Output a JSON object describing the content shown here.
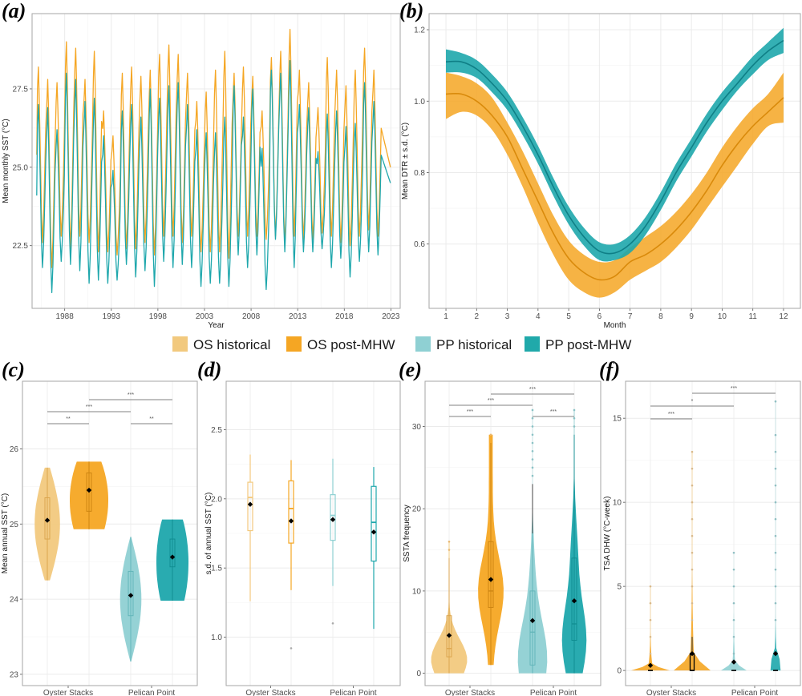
{
  "legend": [
    {
      "label": "OS historical",
      "color": "#F2C97E"
    },
    {
      "label": "OS post-MHW",
      "color": "#F5A623"
    },
    {
      "label": "PP historical",
      "color": "#8FD0D3"
    },
    {
      "label": "PP post-MHW",
      "color": "#20A9AA"
    }
  ],
  "colors": {
    "os": "#F5A623",
    "os_dark": "#D98A0B",
    "pp": "#1EA7AC",
    "pp_dark": "#0F8388",
    "os_hist": "#F2C97E",
    "pp_hist": "#8FD0D3",
    "grid": "#EBEBEB",
    "frame": "#A6A6A6"
  },
  "chart_data": [
    {
      "panel": "(a)",
      "type": "line",
      "title": "",
      "xlabel": "Year",
      "ylabel": "Mean monthly SST (°C)",
      "xticks": [
        "1988",
        "1993",
        "1998",
        "2003",
        "2008",
        "2013",
        "2018",
        "2023"
      ],
      "yticks": [
        "22.5",
        "25.0",
        "27.5"
      ],
      "xlim": [
        1984.5,
        2024.0
      ],
      "ylim": [
        20.5,
        29.9
      ],
      "grid": true,
      "series": [
        {
          "name": "Oyster Stacks",
          "color": "#F5A623",
          "annual_peaks": [
            28.2,
            27.8,
            27.7,
            29.0,
            28.8,
            27.8,
            28.7,
            26.8,
            26.0,
            28.0,
            28.2,
            27.9,
            28.1,
            28.6,
            28.9,
            28.6,
            28.0,
            27.1,
            27.4,
            28.1,
            28.7,
            28.0,
            28.2,
            27.9,
            26.8,
            28.5,
            28.7,
            29.4,
            28.1,
            27.7,
            26.9,
            28.5,
            28.1,
            27.6,
            28.1,
            28.8,
            28.1
          ],
          "annual_troughs": [
            22.6,
            21.8,
            22.8,
            22.4,
            22.8,
            22.6,
            22.3,
            22.3,
            22.2,
            22.4,
            22.4,
            22.6,
            22.2,
            22.8,
            22.8,
            22.6,
            22.8,
            22.3,
            22.3,
            22.3,
            22.1,
            22.8,
            22.8,
            22.8,
            22.7,
            22.8,
            22.5,
            22.8,
            22.7,
            22.7,
            22.9,
            22.8,
            22.6,
            22.5,
            22.8,
            23.0,
            22.8
          ],
          "end_value": 25.0
        },
        {
          "name": "Pelican Point",
          "color": "#1EA7AC",
          "annual_peaks": [
            27.0,
            26.9,
            26.2,
            28.0,
            27.8,
            27.1,
            27.2,
            26.0,
            24.9,
            26.8,
            27.0,
            26.6,
            27.5,
            27.2,
            27.6,
            27.7,
            27.0,
            26.2,
            26.1,
            26.1,
            26.6,
            27.6,
            26.6,
            27.5,
            25.6,
            28.1,
            28.0,
            28.4,
            27.0,
            26.9,
            25.5,
            26.7,
            26.8,
            26.3,
            26.4,
            27.7,
            27.1
          ],
          "annual_troughs": [
            21.8,
            21.0,
            22.0,
            21.9,
            21.7,
            21.3,
            21.4,
            21.3,
            21.4,
            21.9,
            21.5,
            21.7,
            21.2,
            22.0,
            21.8,
            21.9,
            21.8,
            21.2,
            21.3,
            21.3,
            21.2,
            22.2,
            21.8,
            22.2,
            21.1,
            22.7,
            22.3,
            21.8,
            22.3,
            22.3,
            22.4,
            21.8,
            22.1,
            21.5,
            22.0,
            22.3,
            22.2
          ],
          "end_value": 24.5
        }
      ]
    },
    {
      "panel": "(b)",
      "type": "line",
      "title": "",
      "xlabel": "Month",
      "ylabel": "Mean DTR ± s.d. (°C)",
      "xticks": [
        "1",
        "2",
        "3",
        "4",
        "5",
        "6",
        "7",
        "8",
        "9",
        "10",
        "11",
        "12"
      ],
      "yticks": [
        "0.6",
        "0.8",
        "1.0",
        "1.2"
      ],
      "xlim": [
        0.45,
        12.55
      ],
      "ylim": [
        0.42,
        1.245
      ],
      "grid": true,
      "x": [
        1,
        1.5,
        2,
        2.5,
        3,
        3.5,
        4,
        4.5,
        5,
        5.5,
        6,
        6.5,
        7,
        7.5,
        8,
        8.5,
        9,
        9.5,
        10,
        10.5,
        11,
        11.5,
        12
      ],
      "series": [
        {
          "name": "Oyster Stacks",
          "color": "#F5A623",
          "mean": [
            1.02,
            1.02,
            1.0,
            0.96,
            0.9,
            0.81,
            0.72,
            0.63,
            0.56,
            0.52,
            0.5,
            0.51,
            0.55,
            0.57,
            0.6,
            0.64,
            0.69,
            0.75,
            0.82,
            0.88,
            0.93,
            0.97,
            1.01
          ],
          "lower": [
            0.95,
            0.97,
            0.96,
            0.92,
            0.85,
            0.76,
            0.66,
            0.57,
            0.5,
            0.465,
            0.45,
            0.465,
            0.5,
            0.525,
            0.55,
            0.59,
            0.64,
            0.7,
            0.76,
            0.82,
            0.88,
            0.93,
            0.94
          ],
          "upper": [
            1.08,
            1.07,
            1.05,
            1.01,
            0.94,
            0.86,
            0.77,
            0.68,
            0.61,
            0.57,
            0.55,
            0.555,
            0.59,
            0.62,
            0.65,
            0.69,
            0.74,
            0.8,
            0.87,
            0.93,
            0.98,
            1.02,
            1.08
          ]
        },
        {
          "name": "Pelican Point",
          "color": "#1EA7AC",
          "mean": [
            1.11,
            1.11,
            1.09,
            1.05,
            1.0,
            0.93,
            0.85,
            0.76,
            0.68,
            0.62,
            0.58,
            0.575,
            0.6,
            0.65,
            0.72,
            0.8,
            0.87,
            0.94,
            1.0,
            1.05,
            1.1,
            1.14,
            1.17
          ],
          "lower": [
            1.08,
            1.08,
            1.065,
            1.025,
            0.975,
            0.905,
            0.825,
            0.735,
            0.655,
            0.595,
            0.555,
            0.555,
            0.575,
            0.625,
            0.695,
            0.775,
            0.845,
            0.915,
            0.975,
            1.03,
            1.075,
            1.115,
            1.135
          ],
          "upper": [
            1.145,
            1.135,
            1.115,
            1.075,
            1.025,
            0.955,
            0.875,
            0.785,
            0.705,
            0.645,
            0.605,
            0.6,
            0.625,
            0.675,
            0.745,
            0.825,
            0.895,
            0.965,
            1.025,
            1.075,
            1.125,
            1.165,
            1.205
          ]
        }
      ]
    },
    {
      "panel": "(c)",
      "type": "violin",
      "ylabel": "Mean annual SST (°C)",
      "categories": [
        "Oyster Stacks",
        "Pelican Point"
      ],
      "yticks": [
        "23",
        "24",
        "25",
        "26"
      ],
      "ylim": [
        22.85,
        26.9
      ],
      "groups": [
        {
          "name": "OS historical",
          "min": 24.25,
          "q1": 24.8,
          "median": 25.05,
          "q3": 25.35,
          "max": 25.75,
          "mean": 25.05
        },
        {
          "name": "OS post-MHW",
          "min": 24.93,
          "q1": 25.17,
          "median": 25.45,
          "q3": 25.68,
          "max": 25.83,
          "mean": 25.45
        },
        {
          "name": "PP historical",
          "min": 23.17,
          "q1": 23.78,
          "median": 24.05,
          "q3": 24.37,
          "max": 24.83,
          "mean": 24.05
        },
        {
          "name": "PP post-MHW",
          "min": 23.98,
          "q1": 24.43,
          "median": 24.57,
          "q3": 24.8,
          "max": 25.06,
          "mean": 24.56
        }
      ],
      "significance": [
        {
          "from": 0,
          "to": 1,
          "label": "**",
          "level": 1
        },
        {
          "from": 2,
          "to": 3,
          "label": "**",
          "level": 1
        },
        {
          "from": 0,
          "to": 2,
          "label": "***",
          "level": 2
        },
        {
          "from": 1,
          "to": 3,
          "label": "***",
          "level": 3
        }
      ]
    },
    {
      "panel": "(d)",
      "type": "boxplot",
      "ylabel": "s.d. of annual SST (°C)",
      "categories": [
        "Oyster Stacks",
        "Pelican Point"
      ],
      "yticks": [
        "1.0",
        "1.5",
        "2.0",
        "2.5"
      ],
      "ylim": [
        0.65,
        2.85
      ],
      "groups": [
        {
          "name": "OS historical",
          "min": 1.26,
          "q1": 1.77,
          "median": 2.01,
          "q3": 2.12,
          "max": 2.32,
          "mean": 1.96,
          "outliers": []
        },
        {
          "name": "OS post-MHW",
          "min": 1.34,
          "q1": 1.68,
          "median": 1.93,
          "q3": 2.13,
          "max": 2.28,
          "mean": 1.84,
          "outliers": [
            0.92
          ]
        },
        {
          "name": "PP historical",
          "min": 1.37,
          "q1": 1.7,
          "median": 1.88,
          "q3": 2.03,
          "max": 2.29,
          "mean": 1.85,
          "outliers": [
            1.1
          ]
        },
        {
          "name": "PP post-MHW",
          "min": 1.06,
          "q1": 1.55,
          "median": 1.83,
          "q3": 2.09,
          "max": 2.23,
          "mean": 1.76,
          "outliers": []
        }
      ]
    },
    {
      "panel": "(e)",
      "type": "violin",
      "ylabel": "SSTA frequency",
      "categories": [
        "Oyster Stacks",
        "Pelican Point"
      ],
      "yticks": [
        "0",
        "10",
        "20",
        "30"
      ],
      "ylim": [
        -1.5,
        35.5
      ],
      "groups": [
        {
          "name": "OS historical",
          "min": 0,
          "q1": 2,
          "median": 3,
          "q3": 7,
          "max": 14,
          "mean": 4.6,
          "outliers": [
            15,
            16
          ]
        },
        {
          "name": "OS post-MHW",
          "min": 1,
          "q1": 8,
          "median": 10,
          "q3": 16,
          "max": 28,
          "mean": 11.4,
          "outliers": [
            29
          ]
        },
        {
          "name": "PP historical",
          "min": 0,
          "q1": 1,
          "median": 5,
          "q3": 10,
          "max": 23,
          "mean": 6.4,
          "outliers": [
            24,
            25,
            26,
            27,
            28,
            29,
            30,
            31,
            32
          ]
        },
        {
          "name": "PP post-MHW",
          "min": 0,
          "q1": 4,
          "median": 6,
          "q3": 14,
          "max": 29,
          "mean": 8.8,
          "outliers": [
            30,
            31,
            32
          ]
        }
      ],
      "significance": [
        {
          "from": 0,
          "to": 1,
          "label": "***",
          "level": 1
        },
        {
          "from": 2,
          "to": 3,
          "label": "***",
          "level": 1
        },
        {
          "from": 0,
          "to": 2,
          "label": "***",
          "level": 2
        },
        {
          "from": 1,
          "to": 3,
          "label": "***",
          "level": 3
        }
      ]
    },
    {
      "panel": "(f)",
      "type": "violin",
      "ylabel": "TSA DHW  (°C-week)",
      "categories": [
        "Oyster Stacks",
        "Pelican Point"
      ],
      "yticks": [
        "0",
        "5",
        "10",
        "15"
      ],
      "ylim": [
        -0.9,
        17.2
      ],
      "groups": [
        {
          "name": "OS historical",
          "min": 0,
          "q1": 0,
          "median": 0,
          "q3": 0,
          "max": 0,
          "mean": 0.3,
          "outliers": [
            1,
            2,
            3,
            4,
            5
          ]
        },
        {
          "name": "OS post-MHW",
          "min": 0,
          "q1": 0,
          "median": 0,
          "q3": 1,
          "max": 2,
          "mean": 1.0,
          "outliers": [
            3,
            4,
            5,
            6,
            7,
            8,
            9,
            10,
            11,
            12,
            13
          ]
        },
        {
          "name": "PP historical",
          "min": 0,
          "q1": 0,
          "median": 0,
          "q3": 0,
          "max": 0,
          "mean": 0.5,
          "outliers": [
            1,
            2,
            3,
            4,
            5,
            6,
            7
          ]
        },
        {
          "name": "PP post-MHW",
          "min": 0,
          "q1": 0,
          "median": 0,
          "q3": 0,
          "max": 2,
          "mean": 1.0,
          "outliers": [
            3,
            4,
            5,
            6,
            7,
            8,
            9,
            10,
            11,
            12,
            13,
            14,
            16
          ]
        }
      ],
      "significance": [
        {
          "from": 0,
          "to": 1,
          "label": "***",
          "level": 1
        },
        {
          "from": 0,
          "to": 2,
          "label": "*",
          "level": 2
        },
        {
          "from": 1,
          "to": 3,
          "label": "***",
          "level": 3
        }
      ]
    }
  ],
  "panel_labels": [
    "(a)",
    "(b)",
    "(c)",
    "(d)",
    "(e)",
    "(f)"
  ]
}
